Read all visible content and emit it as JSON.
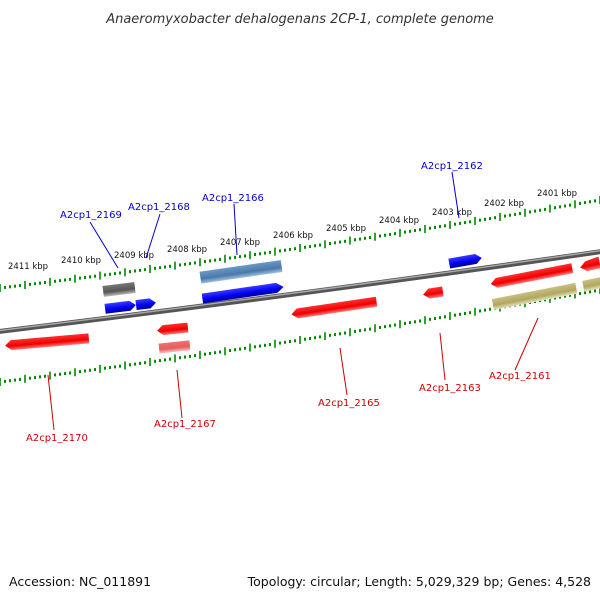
{
  "title": "Anaeromyxobacter dehalogenans 2CP-1, complete genome",
  "footer": {
    "accession": "Accession: NC_011891",
    "summary": "Topology: circular; Length: 5,029,329 bp; Genes: 4,528"
  },
  "colors": {
    "plus_strand": "#0000ee",
    "minus_strand": "#ee0000",
    "backbone": "#7a7a7a",
    "ticks": "#008800"
  },
  "scale_labels": [
    "2411 kbp",
    "2410 kbp",
    "2409 kbp",
    "2408 kbp",
    "2407 kbp",
    "2406 kbp",
    "2405 kbp",
    "2404 kbp",
    "2403 kbp",
    "2402 kbp",
    "2401 kbp"
  ],
  "gene_labels": {
    "plus": [
      "A2cp1_2169",
      "A2cp1_2168",
      "A2cp1_2166",
      "A2cp1_2162"
    ],
    "minus": [
      "A2cp1_2170",
      "A2cp1_2167",
      "A2cp1_2165",
      "A2cp1_2163",
      "A2cp1_2161"
    ]
  }
}
